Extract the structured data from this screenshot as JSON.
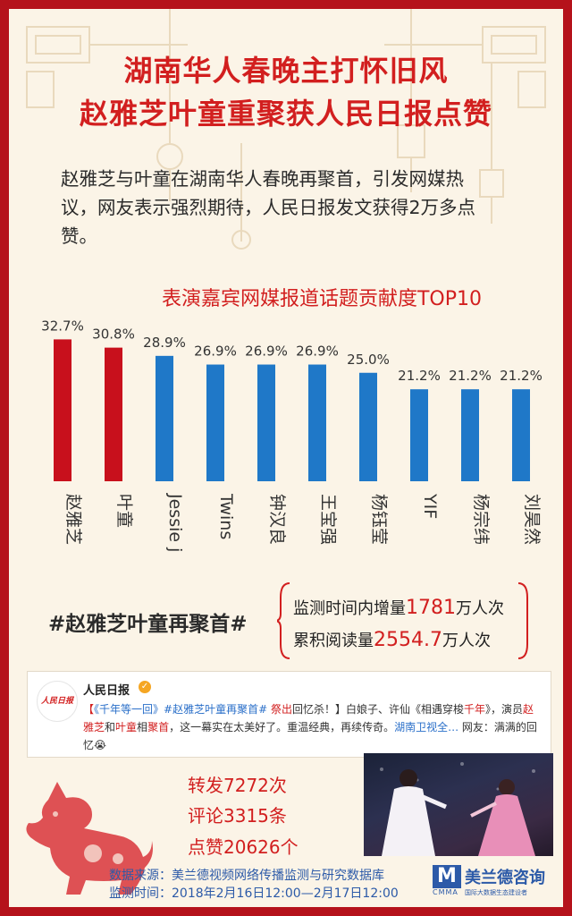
{
  "title": {
    "line1": "湖南华人春晚主打怀旧风",
    "line2": "赵雅芝叶童重聚获人民日报点赞"
  },
  "intro": "赵雅芝与叶童在湖南华人春晚再聚首，引发网媒热议，网友表示强烈期待，人民日报发文获得2万多点赞。",
  "chart_data": {
    "type": "bar",
    "title": "表演嘉宾网媒报道话题贡献度TOP10",
    "categories": [
      "赵雅芝",
      "叶童",
      "Jessie j",
      "Twins",
      "钟汉良",
      "王宝强",
      "杨钰莹",
      "YIF",
      "杨宗纬",
      "刘昊然"
    ],
    "values": [
      32.7,
      30.8,
      28.9,
      26.9,
      26.9,
      26.9,
      25.0,
      21.2,
      21.2,
      21.2
    ],
    "value_labels": [
      "32.7%",
      "30.8%",
      "28.9%",
      "26.9%",
      "26.9%",
      "26.9%",
      "25.0%",
      "21.2%",
      "21.2%",
      "21.2%"
    ],
    "highlight_count": 2,
    "colors": {
      "highlight": "#c8101c",
      "normal": "#1f78c8"
    }
  },
  "hashtag": "#赵雅芝叶童再聚首#",
  "stats": {
    "increment_prefix": "监测时间内增量",
    "increment_value": "1781",
    "increment_unit": "万人次",
    "cumulative_prefix": "累积阅读量",
    "cumulative_value": "2554.7",
    "cumulative_unit": "万人次"
  },
  "weibo": {
    "logo_text": "人民日报",
    "account": "人民日报",
    "verified_icon": "verified-badge-icon",
    "post": {
      "p1": "【",
      "p2": "《千年等一回》",
      "p3": "#赵雅芝叶童再聚首#",
      "p4": " 祭出",
      "p5": "回忆杀！】白娘子、许仙《相遇穿梭",
      "p6": "千年",
      "p7": "》，演员",
      "p8": "赵雅芝",
      "p9": "和",
      "p10": "叶童",
      "p11": "相",
      "p12": "聚首",
      "p13": "，这一幕实在太美好了。重温经典，再续传奇。",
      "p14": "湖南卫视全…",
      "p15": " 网友：满满的回忆😭"
    }
  },
  "metrics": {
    "repost": "转发7272次",
    "comments": "评论3315条",
    "likes": "点赞20626个"
  },
  "source": {
    "line1": "数据来源：美兰德视频网络传播监测与研究数据库",
    "line2": "监测时间：2018年2月16日12:00—2月17日12:00"
  },
  "brand": {
    "mark": "M",
    "sub": "CMMA",
    "name": "美兰德咨询",
    "tagline": "国际大数据生态建设者"
  }
}
